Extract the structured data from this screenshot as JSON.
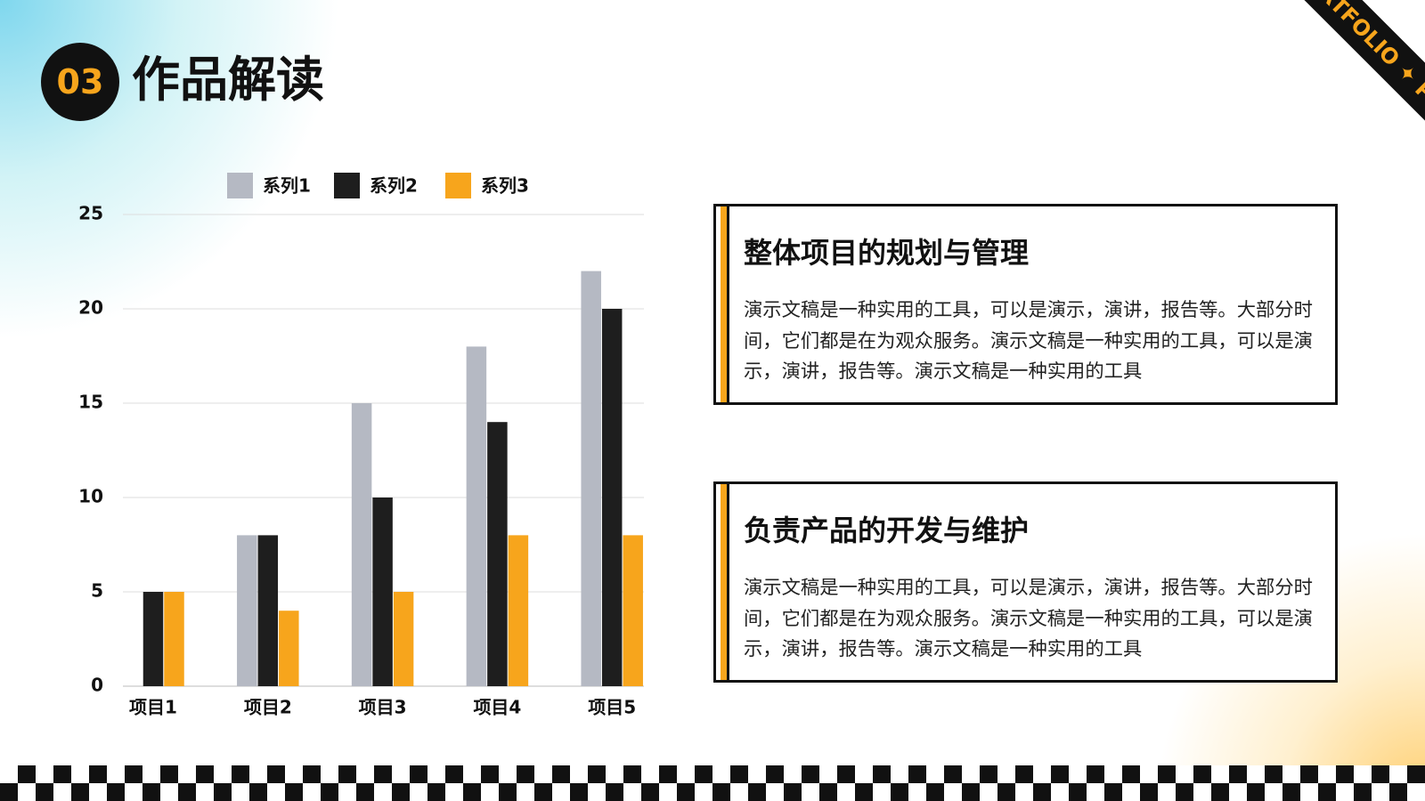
{
  "header": {
    "number": "03",
    "title": "作品解读"
  },
  "badge": "PORTFOLIO ✦ PORTFOLIO",
  "chart_data": {
    "type": "bar",
    "categories": [
      "项目1",
      "项目2",
      "项目3",
      "项目4",
      "项目5"
    ],
    "series": [
      {
        "name": "系列1",
        "color": "#b5b9c3",
        "values": [
          0,
          8,
          15,
          18,
          22
        ]
      },
      {
        "name": "系列2",
        "color": "#1e1e1e",
        "values": [
          5,
          8,
          10,
          14,
          20
        ]
      },
      {
        "name": "系列3",
        "color": "#f7a51c",
        "values": [
          5,
          4,
          5,
          8,
          8
        ]
      }
    ],
    "ylim": [
      0,
      25
    ],
    "yticks": [
      0,
      5,
      10,
      15,
      20,
      25
    ],
    "grid": true,
    "legend": "top"
  },
  "cards": [
    {
      "title": "整体项目的规划与管理",
      "body": "演示文稿是一种实用的工具，可以是演示，演讲，报告等。大部分时间，它们都是在为观众服务。演示文稿是一种实用的工具，可以是演示，演讲，报告等。演示文稿是一种实用的工具"
    },
    {
      "title": "负责产品的开发与维护",
      "body": "演示文稿是一种实用的工具，可以是演示，演讲，报告等。大部分时间，它们都是在为观众服务。演示文稿是一种实用的工具，可以是演示，演讲，报告等。演示文稿是一种实用的工具"
    }
  ]
}
